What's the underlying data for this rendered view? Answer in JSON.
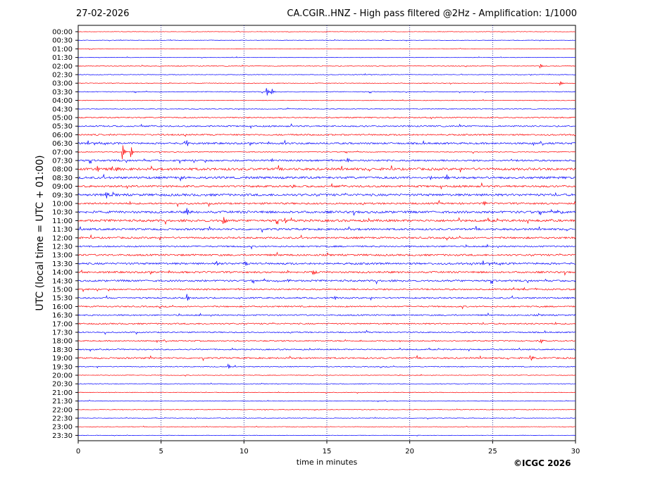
{
  "header": {
    "date": "27-02-2026",
    "title": "CA.CGIR..HNZ - High pass filtered @2Hz - Amplification: 1/1000"
  },
  "footer": {
    "copyright": "©ICGC 2026"
  },
  "colors": {
    "red_trace": "#ff0000",
    "blue_trace": "#0000ff",
    "grid": "#000080"
  },
  "chart_data": {
    "type": "line",
    "subtype": "helicorder",
    "title": "CA.CGIR..HNZ - High pass filtered @2Hz - Amplification: 1/1000",
    "xlabel": "time in minutes",
    "ylabel": "UTC (local time = UTC + 01:00)",
    "xlim": [
      0,
      30
    ],
    "xticks": [
      0,
      5,
      10,
      15,
      20,
      25,
      30
    ],
    "grid_x": [
      5,
      10,
      15,
      20,
      25
    ],
    "grid_style": "dotted vertical",
    "row_labels": [
      "00:00",
      "00:30",
      "01:00",
      "01:30",
      "02:00",
      "02:30",
      "03:00",
      "03:30",
      "04:00",
      "04:30",
      "05:00",
      "05:30",
      "06:00",
      "06:30",
      "07:00",
      "07:30",
      "08:00",
      "08:30",
      "09:00",
      "09:30",
      "10:00",
      "10:30",
      "11:00",
      "11:30",
      "12:00",
      "12:30",
      "13:00",
      "13:30",
      "14:00",
      "14:30",
      "15:00",
      "15:30",
      "16:00",
      "16:30",
      "17:00",
      "17:30",
      "18:00",
      "18:30",
      "19:00",
      "19:30",
      "20:00",
      "20:30",
      "21:00",
      "21:30",
      "22:00",
      "22:30",
      "23:00",
      "23:30"
    ],
    "row_colors": "alternating red / blue starting with red",
    "noise_levels": [
      0.3,
      0.3,
      0.3,
      0.3,
      0.5,
      0.4,
      0.4,
      0.5,
      0.4,
      0.5,
      0.8,
      0.9,
      1.0,
      1.2,
      0.6,
      1.2,
      1.6,
      1.5,
      1.3,
      1.5,
      1.2,
      1.5,
      1.5,
      1.3,
      1.2,
      1.0,
      1.2,
      1.3,
      1.2,
      1.2,
      1.0,
      1.0,
      0.9,
      0.9,
      0.9,
      0.8,
      0.8,
      0.8,
      1.0,
      0.6,
      0.4,
      0.4,
      0.4,
      0.4,
      0.4,
      0.4,
      0.3,
      0.3
    ],
    "events": [
      {
        "row": 4,
        "x": 27.9,
        "amp": 3
      },
      {
        "row": 6,
        "x": 29.1,
        "amp": 4
      },
      {
        "row": 7,
        "x": 11.4,
        "amp": 5
      },
      {
        "row": 7,
        "x": 11.7,
        "amp": 4
      },
      {
        "row": 13,
        "x": 6.6,
        "amp": 4
      },
      {
        "row": 13,
        "x": 12.5,
        "amp": 3
      },
      {
        "row": 14,
        "x": 2.7,
        "amp": 11
      },
      {
        "row": 14,
        "x": 3.2,
        "amp": 8
      },
      {
        "row": 15,
        "x": 11.7,
        "amp": 3
      },
      {
        "row": 15,
        "x": 16.3,
        "amp": 3
      },
      {
        "row": 16,
        "x": 1.2,
        "amp": 3
      },
      {
        "row": 16,
        "x": 2.3,
        "amp": 4
      },
      {
        "row": 17,
        "x": 6.2,
        "amp": 4
      },
      {
        "row": 17,
        "x": 21.3,
        "amp": 3
      },
      {
        "row": 17,
        "x": 22.3,
        "amp": 4
      },
      {
        "row": 18,
        "x": 13.0,
        "amp": 4
      },
      {
        "row": 19,
        "x": 1.7,
        "amp": 5
      },
      {
        "row": 20,
        "x": 24.5,
        "amp": 3
      },
      {
        "row": 21,
        "x": 6.6,
        "amp": 5
      },
      {
        "row": 21,
        "x": 28.9,
        "amp": 3
      },
      {
        "row": 22,
        "x": 8.8,
        "amp": 5
      },
      {
        "row": 22,
        "x": 12.5,
        "amp": 3
      },
      {
        "row": 27,
        "x": 8.4,
        "amp": 3
      },
      {
        "row": 27,
        "x": 10.1,
        "amp": 3
      },
      {
        "row": 28,
        "x": 14.2,
        "amp": 4
      },
      {
        "row": 29,
        "x": 12.7,
        "amp": 3
      },
      {
        "row": 31,
        "x": 6.6,
        "amp": 5
      },
      {
        "row": 31,
        "x": 15.5,
        "amp": 3
      },
      {
        "row": 36,
        "x": 27.9,
        "amp": 3
      },
      {
        "row": 38,
        "x": 27.4,
        "amp": 3
      },
      {
        "row": 39,
        "x": 9.1,
        "amp": 4
      }
    ]
  }
}
